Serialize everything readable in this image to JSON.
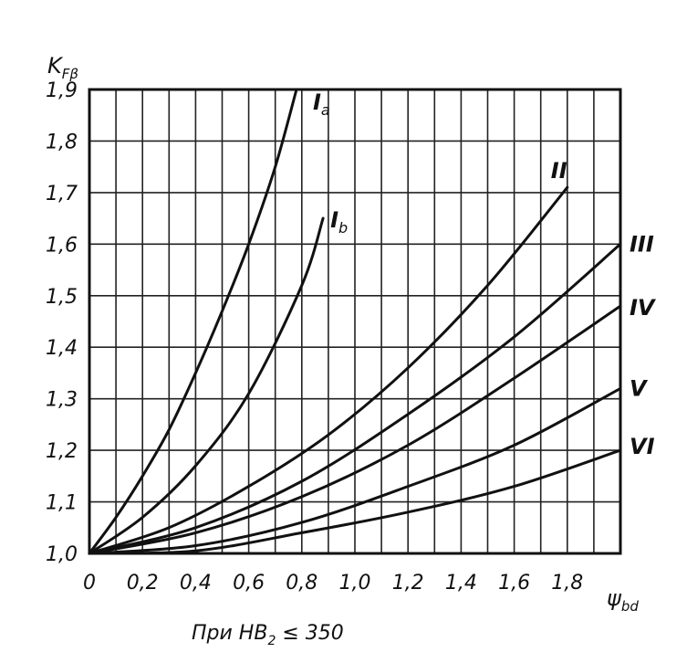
{
  "chart_data": {
    "type": "line",
    "ylabel": "K",
    "ylabel_sub": "Fβ",
    "xlabel": "ψ",
    "xlabel_sub": "bd",
    "note_prefix": "При HB",
    "note_sub": "2",
    "note_suffix": " ≤ 350",
    "xlim": [
      0,
      2.0
    ],
    "ylim": [
      1.0,
      1.9
    ],
    "grid": true,
    "x_ticks": [
      0,
      0.2,
      0.4,
      0.6,
      0.8,
      1.0,
      1.2,
      1.4,
      1.6,
      1.8
    ],
    "x_tick_labels": [
      "0",
      "0,2",
      "0,4",
      "0,6",
      "0,8",
      "1,0",
      "1,2",
      "1,4",
      "1,6",
      "1,8"
    ],
    "y_ticks": [
      1.0,
      1.1,
      1.2,
      1.3,
      1.4,
      1.5,
      1.6,
      1.7,
      1.8,
      1.9
    ],
    "y_tick_labels": [
      "1,0",
      "1,1",
      "1,2",
      "1,3",
      "1,4",
      "1,5",
      "1,6",
      "1,7",
      "1,8",
      "1,9"
    ],
    "series": [
      {
        "name": "I",
        "name_sub": "a",
        "x": [
          0,
          0.1,
          0.2,
          0.3,
          0.4,
          0.5,
          0.6,
          0.7,
          0.78
        ],
        "y": [
          1.0,
          1.07,
          1.15,
          1.24,
          1.35,
          1.47,
          1.6,
          1.75,
          1.9
        ]
      },
      {
        "name": "I",
        "name_sub": "b",
        "x": [
          0,
          0.2,
          0.4,
          0.6,
          0.8,
          0.88
        ],
        "y": [
          1.0,
          1.07,
          1.17,
          1.31,
          1.52,
          1.65
        ]
      },
      {
        "name": "II",
        "x": [
          0,
          0.3,
          0.6,
          0.9,
          1.2,
          1.5,
          1.8
        ],
        "y": [
          1.0,
          1.05,
          1.13,
          1.23,
          1.36,
          1.52,
          1.71
        ]
      },
      {
        "name": "III",
        "x": [
          0,
          0.4,
          0.8,
          1.2,
          1.6,
          2.0
        ],
        "y": [
          1.0,
          1.05,
          1.14,
          1.27,
          1.42,
          1.6
        ]
      },
      {
        "name": "IV",
        "x": [
          0,
          0.4,
          0.8,
          1.2,
          1.6,
          2.0
        ],
        "y": [
          1.0,
          1.04,
          1.11,
          1.21,
          1.34,
          1.48
        ]
      },
      {
        "name": "V",
        "x": [
          0,
          0.4,
          0.8,
          1.2,
          1.6,
          2.0
        ],
        "y": [
          1.0,
          1.015,
          1.06,
          1.13,
          1.21,
          1.32
        ]
      },
      {
        "name": "VI",
        "x": [
          0,
          0.4,
          0.8,
          1.2,
          1.6,
          2.0
        ],
        "y": [
          1.0,
          1.005,
          1.04,
          1.08,
          1.13,
          1.2
        ]
      }
    ]
  }
}
